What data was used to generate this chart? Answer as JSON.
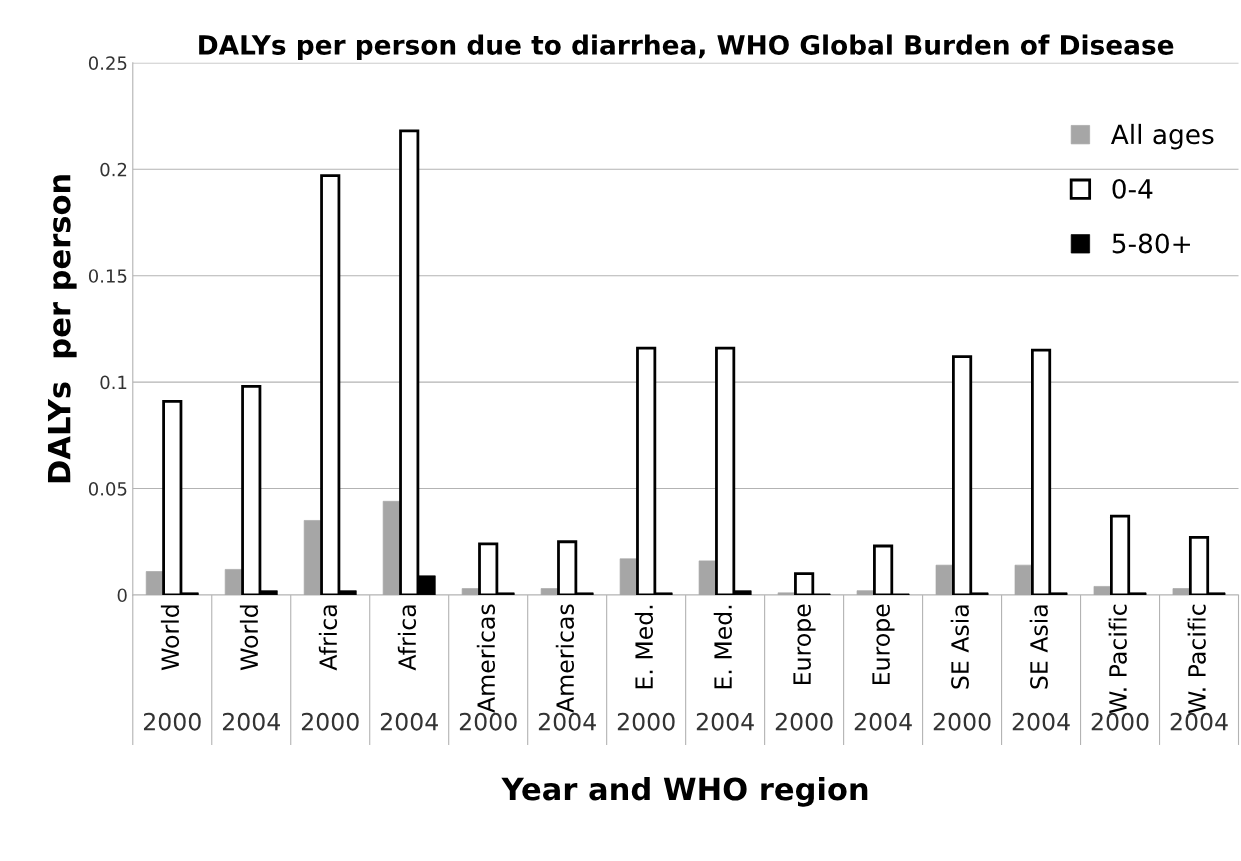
{
  "chart_data": {
    "type": "bar",
    "title": "DALYs per person due to diarrhea, WHO Global Burden of Disease",
    "xlabel": "Year and WHO region",
    "ylabel": "DALYs  per person",
    "categories": [
      "World",
      "World",
      "Africa",
      "Africa",
      "Americas",
      "Americas",
      "E. Med.",
      "E. Med.",
      "Europe",
      "Europe",
      "SE Asia",
      "SE Asia",
      "W. Pacific",
      "W. Pacific"
    ],
    "annotations": [
      "2000",
      "2004",
      "2000",
      "2004",
      "2000",
      "2004",
      "2000",
      "2004",
      "2000",
      "2004",
      "2000",
      "2004",
      "2000",
      "2004"
    ],
    "series": [
      {
        "name": "All ages",
        "color": "#a6a6a6",
        "values": [
          0.011,
          0.012,
          0.035,
          0.044,
          0.003,
          0.003,
          0.017,
          0.016,
          0.001,
          0.002,
          0.014,
          0.014,
          0.004,
          0.003
        ]
      },
      {
        "name": "0-4",
        "color": "#ffffff",
        "values": [
          0.091,
          0.098,
          0.197,
          0.218,
          0.024,
          0.025,
          0.116,
          0.116,
          0.01,
          0.023,
          0.112,
          0.115,
          0.037,
          0.027
        ]
      },
      {
        "name": "5-80+",
        "color": "#000000",
        "values": [
          0.001,
          0.002,
          0.002,
          0.009,
          0.001,
          0.001,
          0.001,
          0.002,
          0.0005,
          0.0005,
          0.001,
          0.001,
          0.001,
          0.001
        ]
      }
    ],
    "ylim": [
      0,
      0.25
    ],
    "yticks": [
      0,
      0.05,
      0.1,
      0.15,
      0.2,
      0.25
    ],
    "grid": "y",
    "legend": "top right"
  }
}
